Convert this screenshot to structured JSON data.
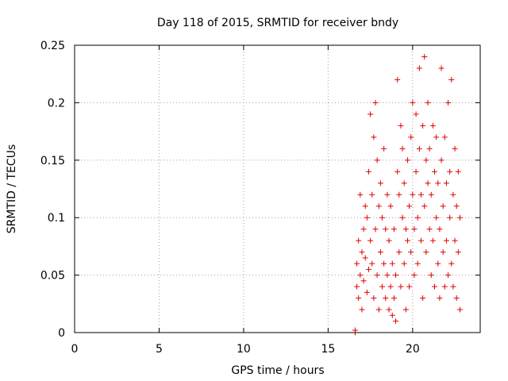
{
  "chart_data": {
    "type": "scatter",
    "title": "Day 118 of 2015, SRMTID for receiver bndy",
    "xlabel": "GPS time / hours",
    "ylabel": "SRMTID / TECUs",
    "xlim": [
      0,
      24.0
    ],
    "ylim": [
      0,
      0.25
    ],
    "xticks": [
      0,
      5,
      10,
      15,
      20
    ],
    "xtick_labels": [
      "0",
      "5",
      "10",
      "15",
      "20"
    ],
    "yticks": [
      0,
      0.05,
      0.1,
      0.15,
      0.2,
      0.25
    ],
    "ytick_labels": [
      "0",
      "0.05",
      "0.1",
      "0.15",
      "0.2",
      "0.25"
    ],
    "grid": true,
    "marker": "+",
    "color": "#e00000",
    "series": [
      {
        "name": "SRMTID",
        "points": [
          [
            16.6,
            0.0
          ],
          [
            16.6,
            0.002
          ],
          [
            16.7,
            0.04
          ],
          [
            16.7,
            0.06
          ],
          [
            16.8,
            0.08
          ],
          [
            16.8,
            0.03
          ],
          [
            16.9,
            0.05
          ],
          [
            16.9,
            0.12
          ],
          [
            17.0,
            0.07
          ],
          [
            17.0,
            0.02
          ],
          [
            17.1,
            0.09
          ],
          [
            17.1,
            0.045
          ],
          [
            17.2,
            0.11
          ],
          [
            17.2,
            0.065
          ],
          [
            17.3,
            0.035
          ],
          [
            17.3,
            0.1
          ],
          [
            17.4,
            0.055
          ],
          [
            17.4,
            0.14
          ],
          [
            17.5,
            0.08
          ],
          [
            17.5,
            0.19
          ],
          [
            17.6,
            0.06
          ],
          [
            17.6,
            0.12
          ],
          [
            17.7,
            0.03
          ],
          [
            17.7,
            0.17
          ],
          [
            17.8,
            0.2
          ],
          [
            17.8,
            0.09
          ],
          [
            17.9,
            0.05
          ],
          [
            17.9,
            0.15
          ],
          [
            18.0,
            0.11
          ],
          [
            18.0,
            0.02
          ],
          [
            18.1,
            0.13
          ],
          [
            18.1,
            0.07
          ],
          [
            18.2,
            0.04
          ],
          [
            18.2,
            0.1
          ],
          [
            18.3,
            0.06
          ],
          [
            18.3,
            0.16
          ],
          [
            18.4,
            0.09
          ],
          [
            18.4,
            0.03
          ],
          [
            18.5,
            0.12
          ],
          [
            18.5,
            0.05
          ],
          [
            18.6,
            0.08
          ],
          [
            18.6,
            0.02
          ],
          [
            18.7,
            0.04
          ],
          [
            18.7,
            0.11
          ],
          [
            18.8,
            0.015
          ],
          [
            18.8,
            0.06
          ],
          [
            18.9,
            0.03
          ],
          [
            18.9,
            0.09
          ],
          [
            19.0,
            0.01
          ],
          [
            19.0,
            0.05
          ],
          [
            19.1,
            0.14
          ],
          [
            19.1,
            0.22
          ],
          [
            19.2,
            0.07
          ],
          [
            19.2,
            0.12
          ],
          [
            19.3,
            0.18
          ],
          [
            19.3,
            0.04
          ],
          [
            19.4,
            0.1
          ],
          [
            19.4,
            0.16
          ],
          [
            19.5,
            0.06
          ],
          [
            19.5,
            0.13
          ],
          [
            19.6,
            0.02
          ],
          [
            19.6,
            0.09
          ],
          [
            19.7,
            0.15
          ],
          [
            19.7,
            0.08
          ],
          [
            19.8,
            0.11
          ],
          [
            19.8,
            0.04
          ],
          [
            19.9,
            0.17
          ],
          [
            19.9,
            0.07
          ],
          [
            20.0,
            0.12
          ],
          [
            20.0,
            0.2
          ],
          [
            20.1,
            0.09
          ],
          [
            20.1,
            0.05
          ],
          [
            20.2,
            0.14
          ],
          [
            20.2,
            0.19
          ],
          [
            20.3,
            0.1
          ],
          [
            20.3,
            0.06
          ],
          [
            20.4,
            0.16
          ],
          [
            20.4,
            0.23
          ],
          [
            20.5,
            0.08
          ],
          [
            20.5,
            0.12
          ],
          [
            20.6,
            0.03
          ],
          [
            20.6,
            0.18
          ],
          [
            20.7,
            0.24
          ],
          [
            20.7,
            0.11
          ],
          [
            20.8,
            0.15
          ],
          [
            20.8,
            0.07
          ],
          [
            20.9,
            0.2
          ],
          [
            20.9,
            0.13
          ],
          [
            21.0,
            0.09
          ],
          [
            21.0,
            0.16
          ],
          [
            21.1,
            0.05
          ],
          [
            21.1,
            0.12
          ],
          [
            21.2,
            0.18
          ],
          [
            21.2,
            0.08
          ],
          [
            21.3,
            0.14
          ],
          [
            21.3,
            0.04
          ],
          [
            21.4,
            0.1
          ],
          [
            21.4,
            0.17
          ],
          [
            21.5,
            0.06
          ],
          [
            21.5,
            0.13
          ],
          [
            21.6,
            0.09
          ],
          [
            21.6,
            0.03
          ],
          [
            21.7,
            0.15
          ],
          [
            21.7,
            0.23
          ],
          [
            21.8,
            0.11
          ],
          [
            21.8,
            0.07
          ],
          [
            21.9,
            0.17
          ],
          [
            21.9,
            0.04
          ],
          [
            22.0,
            0.13
          ],
          [
            22.0,
            0.08
          ],
          [
            22.1,
            0.2
          ],
          [
            22.1,
            0.05
          ],
          [
            22.2,
            0.14
          ],
          [
            22.2,
            0.1
          ],
          [
            22.3,
            0.06
          ],
          [
            22.3,
            0.22
          ],
          [
            22.4,
            0.12
          ],
          [
            22.4,
            0.04
          ],
          [
            22.5,
            0.16
          ],
          [
            22.5,
            0.08
          ],
          [
            22.6,
            0.11
          ],
          [
            22.6,
            0.03
          ],
          [
            22.7,
            0.14
          ],
          [
            22.7,
            0.07
          ],
          [
            22.8,
            0.1
          ],
          [
            22.8,
            0.02
          ]
        ]
      }
    ]
  }
}
